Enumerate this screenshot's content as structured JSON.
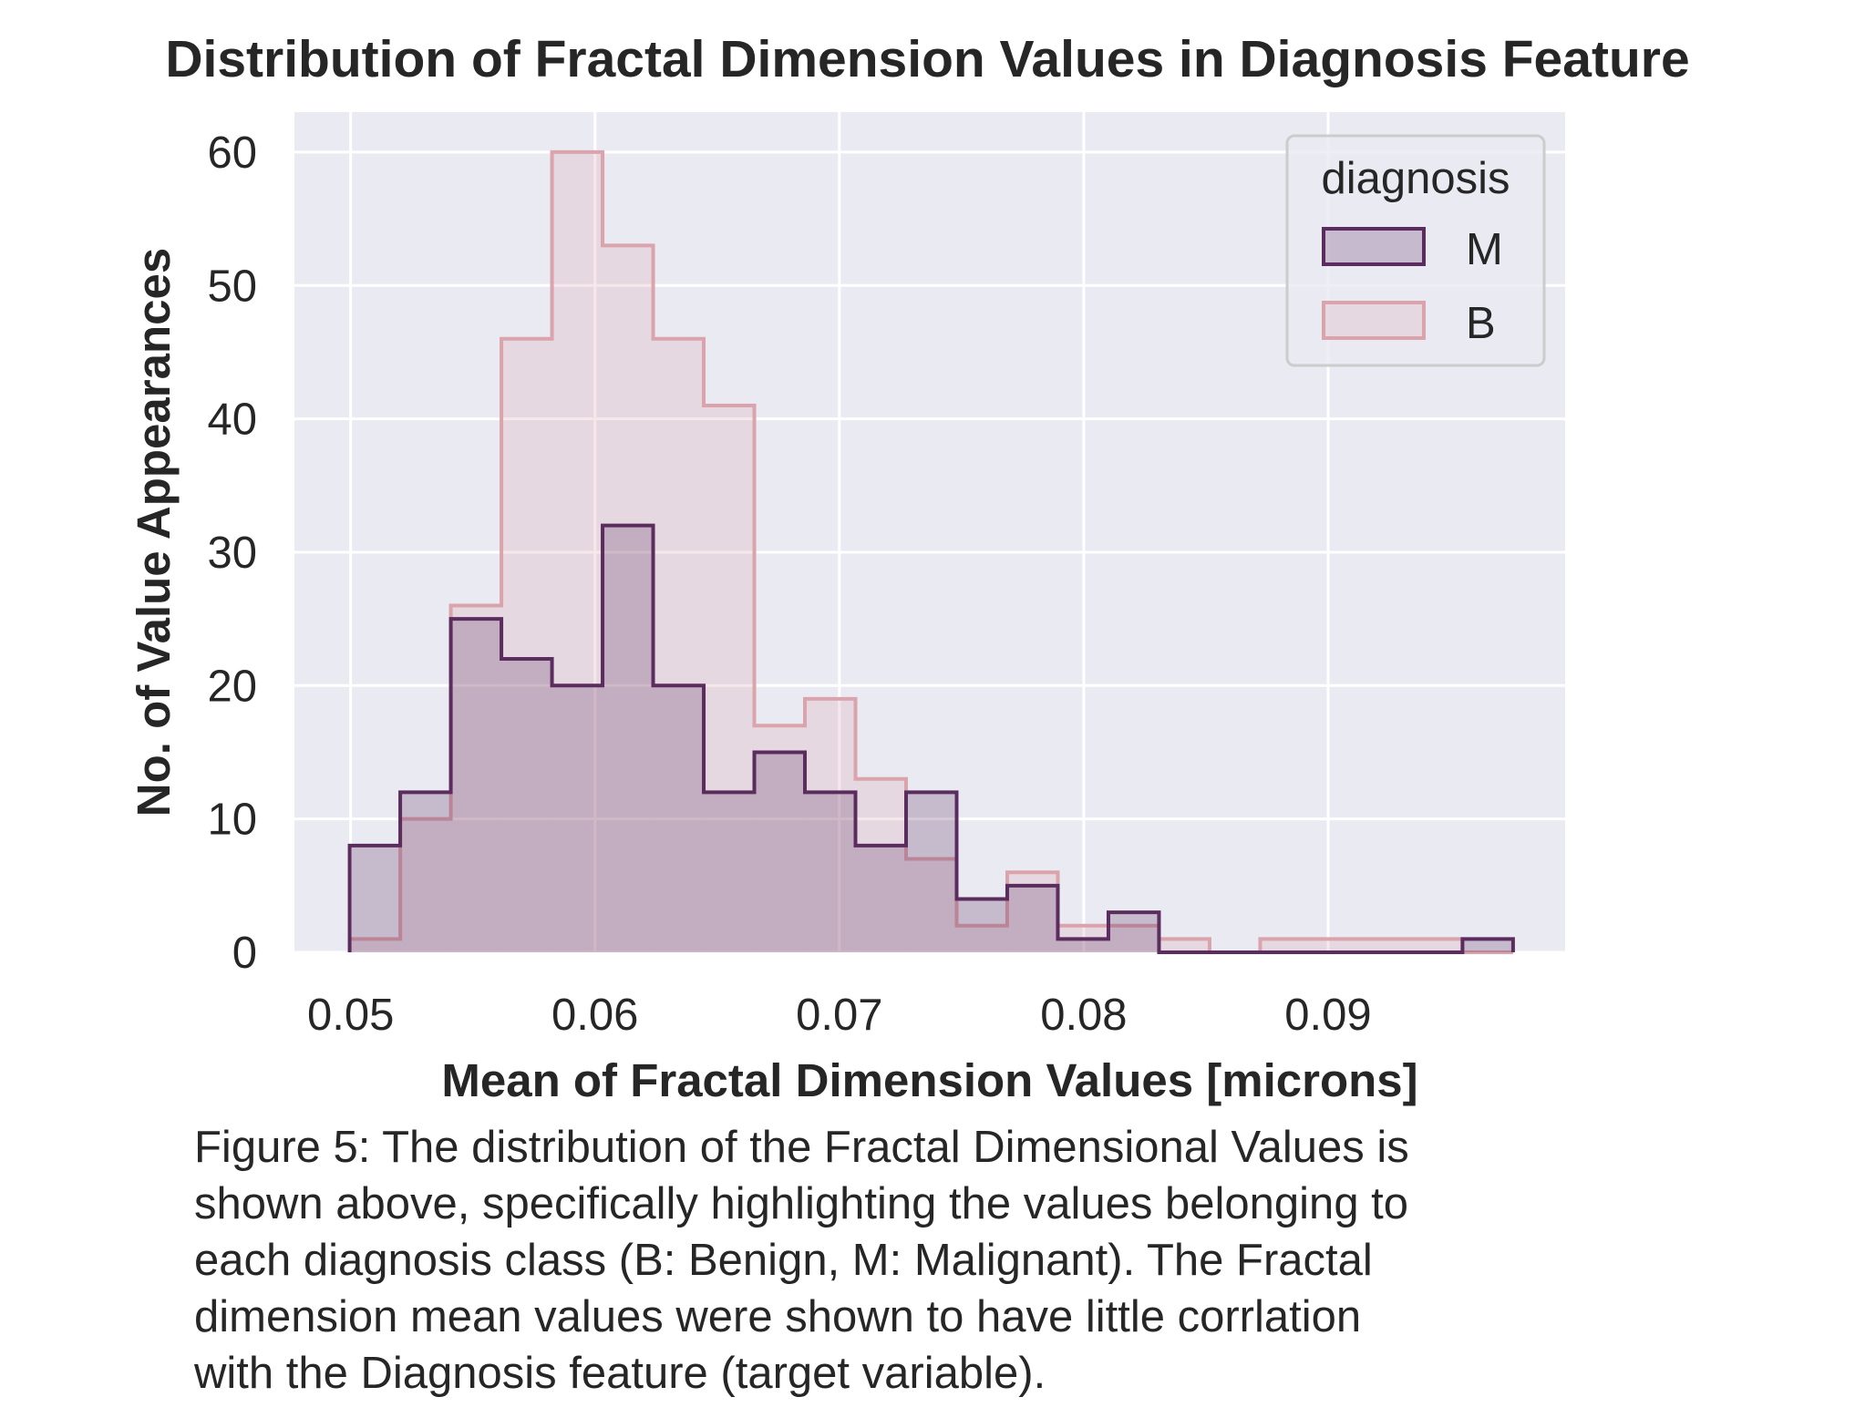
{
  "chart_data": {
    "type": "histogram",
    "title": "Distribution of Fractal Dimension Values in Diagnosis Feature",
    "xlabel": "Mean of Fractal Dimension Values [microns]",
    "ylabel": "No. of Value Appearances",
    "xlim": [
      0.0477,
      0.0997
    ],
    "ylim": [
      0,
      63
    ],
    "x_ticks": [
      0.05,
      0.06,
      0.07,
      0.08,
      0.09
    ],
    "x_tick_labels": [
      "0.05",
      "0.06",
      "0.07",
      "0.08",
      "0.09"
    ],
    "y_ticks": [
      0,
      10,
      20,
      30,
      40,
      50,
      60
    ],
    "y_tick_labels": [
      "0",
      "10",
      "20",
      "30",
      "40",
      "50",
      "60"
    ],
    "grid": true,
    "legend": {
      "title": "diagnosis",
      "placement": "top-right"
    },
    "bin_edges": [
      0.04996,
      0.05203,
      0.0541,
      0.05617,
      0.05824,
      0.06031,
      0.06238,
      0.06445,
      0.06652,
      0.06859,
      0.07066,
      0.07273,
      0.0748,
      0.07687,
      0.07894,
      0.08101,
      0.08308,
      0.08515,
      0.08722,
      0.08929,
      0.09136,
      0.09343,
      0.0955,
      0.09757
    ],
    "series": [
      {
        "name": "M",
        "color": "#5b2d5e",
        "fill": "rgba(91,45,94,0.25)",
        "values": [
          8,
          12,
          25,
          22,
          20,
          32,
          20,
          12,
          15,
          12,
          8,
          12,
          4,
          5,
          1,
          3,
          0,
          0,
          0,
          0,
          0,
          0,
          1
        ]
      },
      {
        "name": "B",
        "color": "#dba3ab",
        "fill": "rgba(219,163,171,0.25)",
        "values": [
          1,
          10,
          26,
          46,
          60,
          53,
          46,
          41,
          17,
          19,
          13,
          7,
          2,
          6,
          2,
          2,
          1,
          0,
          1,
          1,
          1,
          1,
          0
        ]
      }
    ]
  },
  "caption": {
    "lines": [
      "Figure 5: The distribution of the Fractal Dimensional Values is",
      "shown above, specifically highlighting the values belonging to",
      "each diagnosis class (B: Benign, M: Malignant). The Fractal",
      "dimension mean values were shown to have little corrlation",
      "with the Diagnosis feature (target variable)."
    ]
  }
}
